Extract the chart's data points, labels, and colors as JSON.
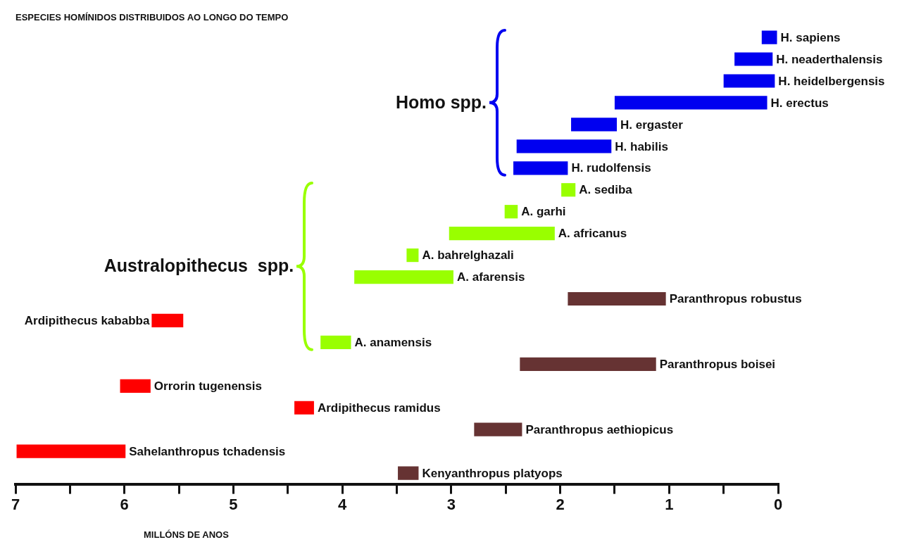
{
  "chart_data": {
    "type": "bar",
    "orientation": "horizontal",
    "title": "ESPECIES HOMÍNIDOS DISTRIBUIDOS AO LONGO DO TEMPO",
    "xlabel": "MILLÓNS DE ANOS",
    "annotations": [
      "Homo spp.",
      "Australopithecus  spp."
    ],
    "categories": [
      "H. sapiens",
      "H. neaderthalensis",
      "H. heidelbergensis",
      "H. erectus",
      "H. ergaster",
      "H. habilis",
      "H. rudolfensis",
      "A. sediba",
      "A. garhi",
      "A. africanus",
      "A. bahrelghazali",
      "A. afarensis",
      "Paranthropus robustus",
      "Ardipithecus kababba",
      "A. anamensis",
      "Paranthropus boisei",
      "Orrorin tugenensis",
      "Ardipithecus ramidus",
      "Paranthropus aethiopicus",
      "Sahelanthropus tchadensis",
      "Kenyanthropus platyops"
    ],
    "base": [
      0,
      0.05,
      0.03,
      0.1,
      1.48,
      1.53,
      1.93,
      1.86,
      2.39,
      2.05,
      3.3,
      2.98,
      1.03,
      5.46,
      3.92,
      1.12,
      5.76,
      4.26,
      2.35,
      5.99,
      3.3
    ],
    "values": [
      0.15,
      0.35,
      0.47,
      1.4,
      0.42,
      0.87,
      0.5,
      0.13,
      0.12,
      0.97,
      0.11,
      0.91,
      0.9,
      0.29,
      0.28,
      1.25,
      0.28,
      0.18,
      0.44,
      1.0,
      0.19
    ],
    "colors": [
      "#0000f0",
      "#0000f0",
      "#0000f0",
      "#0000f0",
      "#0000f0",
      "#0000f0",
      "#0000f0",
      "#99ff00",
      "#99ff00",
      "#99ff00",
      "#99ff00",
      "#99ff00",
      "#663333",
      "#ff0000",
      "#99ff00",
      "#663333",
      "#ff0000",
      "#ff0000",
      "#663333",
      "#ff0000",
      "#663333"
    ],
    "xlim": [
      7,
      0
    ],
    "xticks": [
      7,
      {
        "value": 6.5,
        "label": null
      },
      6,
      {
        "value": 5.5,
        "label": null
      },
      5,
      {
        "value": 4.5,
        "label": null
      },
      4,
      {
        "value": 3.5,
        "label": null
      },
      3,
      {
        "value": 2.5,
        "label": null
      },
      2,
      {
        "value": 1.5,
        "label": null
      },
      1,
      {
        "value": 0.5,
        "label": null
      },
      0
    ]
  }
}
